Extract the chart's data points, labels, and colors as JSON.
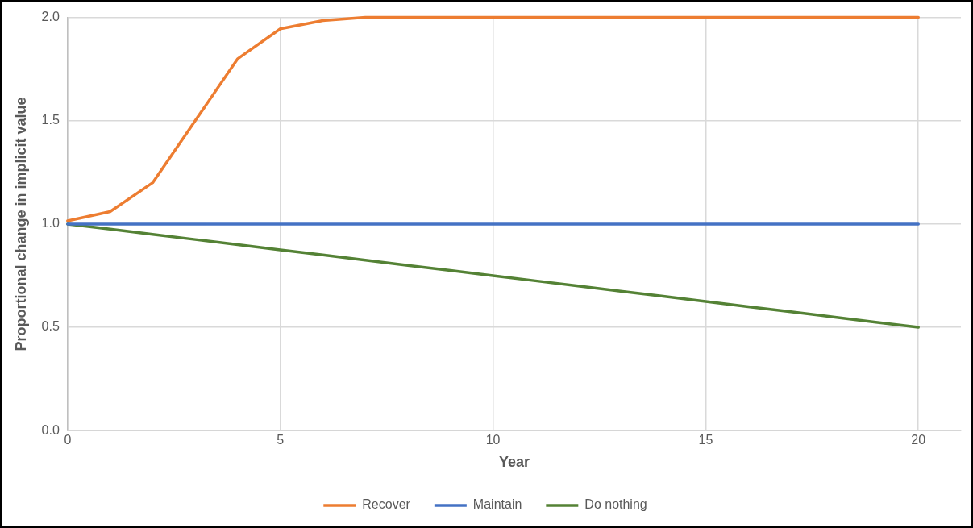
{
  "chart_data": {
    "type": "line",
    "xlabel": "Year",
    "ylabel": "Proportional change in implicit value",
    "x": [
      0,
      1,
      2,
      3,
      4,
      5,
      6,
      7,
      8,
      9,
      10,
      11,
      12,
      13,
      14,
      15,
      16,
      17,
      18,
      19,
      20
    ],
    "series": [
      {
        "name": "Recover",
        "color": "#ed7d31",
        "values": [
          1.015,
          1.06,
          1.2,
          1.5,
          1.8,
          1.945,
          1.985,
          2.0,
          2.0,
          2.0,
          2.0,
          2.0,
          2.0,
          2.0,
          2.0,
          2.0,
          2.0,
          2.0,
          2.0,
          2.0,
          2.0
        ]
      },
      {
        "name": "Maintain",
        "color": "#4472c4",
        "values": [
          1,
          1,
          1,
          1,
          1,
          1,
          1,
          1,
          1,
          1,
          1,
          1,
          1,
          1,
          1,
          1,
          1,
          1,
          1,
          1,
          1
        ]
      },
      {
        "name": "Do nothing",
        "color": "#548235",
        "values": [
          1,
          0.975,
          0.95,
          0.925,
          0.9,
          0.875,
          0.85,
          0.825,
          0.8,
          0.775,
          0.75,
          0.725,
          0.7,
          0.675,
          0.65,
          0.625,
          0.6,
          0.575,
          0.55,
          0.525,
          0.5
        ]
      }
    ],
    "xlim": [
      0,
      21
    ],
    "xticks": [
      0,
      5,
      10,
      15,
      20
    ],
    "ylim": [
      0,
      2
    ],
    "yticks": [
      {
        "value": 0,
        "label": "0.0"
      },
      {
        "value": 0.5,
        "label": "0.5"
      },
      {
        "value": 1,
        "label": "1.0"
      },
      {
        "value": 1.5,
        "label": "1.5"
      },
      {
        "value": 2,
        "label": "2.0"
      }
    ],
    "grid": true,
    "legend": "bottom",
    "marker": "none",
    "line_style": "solid"
  }
}
